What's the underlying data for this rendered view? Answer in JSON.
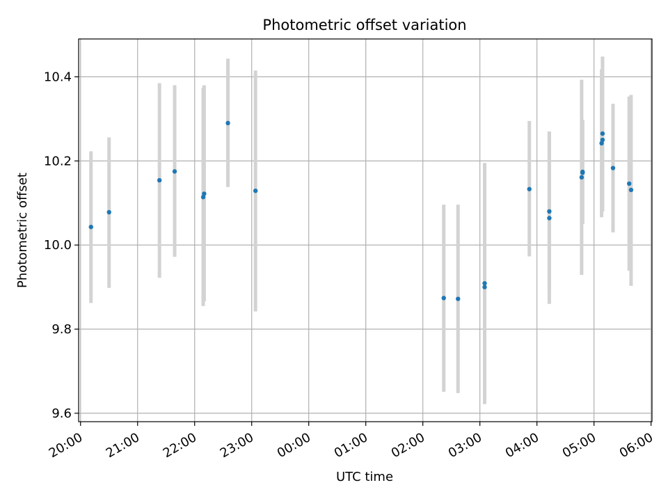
{
  "chart_data": {
    "type": "scatter",
    "title": "Photometric offset variation",
    "xlabel": "UTC time",
    "ylabel": "Photometric offset",
    "x_ticks": [
      "20:00",
      "21:00",
      "22:00",
      "23:00",
      "00:00",
      "01:00",
      "02:00",
      "03:00",
      "04:00",
      "05:00",
      "06:00"
    ],
    "y_ticks": [
      "9.6",
      "9.8",
      "10.0",
      "10.2",
      "10.4"
    ],
    "x_range": [
      "19:58",
      "06:01"
    ],
    "ylim": [
      9.58,
      10.49
    ],
    "grid": true,
    "colors": {
      "points": "#1f77b4",
      "errorbars": "#d3d3d3",
      "grid": "#b0b0b0"
    },
    "points": [
      {
        "x": "20:11",
        "y": 10.043,
        "low": 9.862,
        "high": 10.223
      },
      {
        "x": "20:30",
        "y": 10.078,
        "low": 9.898,
        "high": 10.256
      },
      {
        "x": "21:23",
        "y": 10.154,
        "low": 9.922,
        "high": 10.385
      },
      {
        "x": "21:39",
        "y": 10.175,
        "low": 9.972,
        "high": 10.38
      },
      {
        "x": "22:09",
        "y": 10.114,
        "low": 9.855,
        "high": 10.374
      },
      {
        "x": "22:10",
        "y": 10.122,
        "low": 9.866,
        "high": 10.38
      },
      {
        "x": "22:35",
        "y": 10.29,
        "low": 10.138,
        "high": 10.443
      },
      {
        "x": "23:04",
        "y": 10.129,
        "low": 9.842,
        "high": 10.415
      },
      {
        "x": "02:22",
        "y": 9.874,
        "low": 9.651,
        "high": 10.096
      },
      {
        "x": "02:37",
        "y": 9.872,
        "low": 9.648,
        "high": 10.096
      },
      {
        "x": "03:05",
        "y": 9.9,
        "low": 9.622,
        "high": 10.195
      },
      {
        "x": "03:05",
        "y": 9.909,
        "low": 9.622,
        "high": 10.195
      },
      {
        "x": "03:52",
        "y": 10.133,
        "low": 9.973,
        "high": 10.295
      },
      {
        "x": "04:13",
        "y": 10.064,
        "low": 9.86,
        "high": 10.27
      },
      {
        "x": "04:13",
        "y": 10.08,
        "low": 9.89,
        "high": 10.27
      },
      {
        "x": "04:47",
        "y": 10.161,
        "low": 9.929,
        "high": 10.393
      },
      {
        "x": "04:48",
        "y": 10.172,
        "low": 10.05,
        "high": 10.298
      },
      {
        "x": "04:48",
        "y": 10.174,
        "low": 10.05,
        "high": 10.298
      },
      {
        "x": "05:08",
        "y": 10.242,
        "low": 10.066,
        "high": 10.418
      },
      {
        "x": "05:09",
        "y": 10.25,
        "low": 10.08,
        "high": 10.448
      },
      {
        "x": "05:09",
        "y": 10.265,
        "low": 10.08,
        "high": 10.448
      },
      {
        "x": "05:20",
        "y": 10.183,
        "low": 10.03,
        "high": 10.336
      },
      {
        "x": "05:37",
        "y": 10.146,
        "low": 9.939,
        "high": 10.353
      },
      {
        "x": "05:39",
        "y": 10.131,
        "low": 9.903,
        "high": 10.357
      }
    ]
  }
}
